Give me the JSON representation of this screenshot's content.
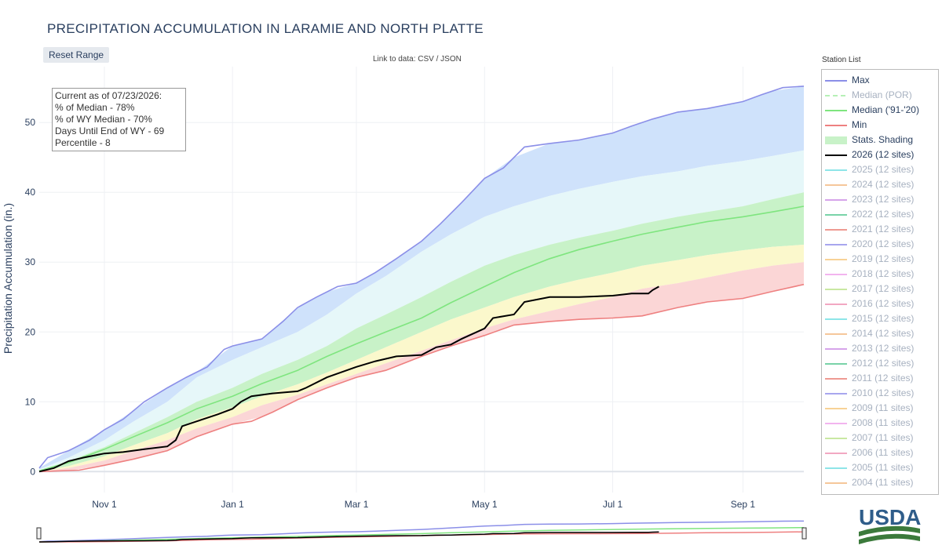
{
  "page": {
    "title": "PRECIPITATION ACCUMULATION IN LARAMIE AND NORTH PLATTE",
    "reset_label": "Reset Range",
    "data_link_prefix": "Link to data:",
    "data_link_csv": "CSV",
    "data_link_sep": "/",
    "data_link_json": "JSON",
    "station_list_title": "Station List",
    "logo_text": "USDA"
  },
  "stats_box": {
    "line1": "Current as of 07/23/2026:",
    "line2": "% of Median - 78%",
    "line3": "% of WY Median - 70%",
    "line4": "Days Until End of WY - 69",
    "line5": "Percentile - 8"
  },
  "legend": [
    {
      "label": "Max",
      "color": "#8b8fe8",
      "kind": "line",
      "dim": false
    },
    {
      "label": "Median (POR)",
      "color": "#b6f0b6",
      "kind": "dash",
      "dim": true
    },
    {
      "label": "Median ('91-'20)",
      "color": "#7fe57f",
      "kind": "line",
      "dim": false
    },
    {
      "label": "Min",
      "color": "#ee8080",
      "kind": "line",
      "dim": false
    },
    {
      "label": "Stats. Shading",
      "color": "#c8f2c8",
      "kind": "box",
      "dim": false
    },
    {
      "label": "2026 (12 sites)",
      "color": "#000000",
      "kind": "line",
      "dim": false
    },
    {
      "label": "2025 (12 sites)",
      "color": "#8ee5e8",
      "kind": "line",
      "dim": true
    },
    {
      "label": "2024 (12 sites)",
      "color": "#f5c79a",
      "kind": "line",
      "dim": true
    },
    {
      "label": "2023 (12 sites)",
      "color": "#d6a4ea",
      "kind": "line",
      "dim": true
    },
    {
      "label": "2022 (12 sites)",
      "color": "#79d3a8",
      "kind": "line",
      "dim": true
    },
    {
      "label": "2021 (12 sites)",
      "color": "#ee9a92",
      "kind": "line",
      "dim": true
    },
    {
      "label": "2020 (12 sites)",
      "color": "#a8a6ee",
      "kind": "line",
      "dim": true
    },
    {
      "label": "2019 (12 sites)",
      "color": "#f8d296",
      "kind": "line",
      "dim": true
    },
    {
      "label": "2018 (12 sites)",
      "color": "#f2b4ef",
      "kind": "line",
      "dim": true
    },
    {
      "label": "2017 (12 sites)",
      "color": "#c9e8a2",
      "kind": "line",
      "dim": true
    },
    {
      "label": "2016 (12 sites)",
      "color": "#f2a8c2",
      "kind": "line",
      "dim": true
    },
    {
      "label": "2015 (12 sites)",
      "color": "#8ee5e8",
      "kind": "line",
      "dim": true
    },
    {
      "label": "2014 (12 sites)",
      "color": "#f5c79a",
      "kind": "line",
      "dim": true
    },
    {
      "label": "2013 (12 sites)",
      "color": "#d6a4ea",
      "kind": "line",
      "dim": true
    },
    {
      "label": "2012 (12 sites)",
      "color": "#79d3a8",
      "kind": "line",
      "dim": true
    },
    {
      "label": "2011 (12 sites)",
      "color": "#ee9a92",
      "kind": "line",
      "dim": true
    },
    {
      "label": "2010 (12 sites)",
      "color": "#a8a6ee",
      "kind": "line",
      "dim": true
    },
    {
      "label": "2009 (11 sites)",
      "color": "#f8d296",
      "kind": "line",
      "dim": true
    },
    {
      "label": "2008 (11 sites)",
      "color": "#f2b4ef",
      "kind": "line",
      "dim": true
    },
    {
      "label": "2007 (11 sites)",
      "color": "#c9e8a2",
      "kind": "line",
      "dim": true
    },
    {
      "label": "2006 (11 sites)",
      "color": "#f2a8c2",
      "kind": "line",
      "dim": true
    },
    {
      "label": "2005 (11 sites)",
      "color": "#8ee5e8",
      "kind": "line",
      "dim": true
    },
    {
      "label": "2004 (11 sites)",
      "color": "#f5c79a",
      "kind": "line",
      "dim": true
    }
  ],
  "chart_data": {
    "type": "line",
    "title": "PRECIPITATION ACCUMULATION IN LARAMIE AND NORTH PLATTE",
    "ylabel": "Precipitation Accumulation (in.)",
    "xlabel": "",
    "x_ticks": [
      "Nov 1",
      "Jan 1",
      "Mar 1",
      "May 1",
      "Jul 1",
      "Sep 1"
    ],
    "y_ticks": [
      0,
      10,
      20,
      30,
      40,
      50
    ],
    "ylim": [
      -3,
      58
    ],
    "x_domain": [
      "2025-10-01",
      "2026-09-30"
    ],
    "grid": true,
    "legend_position": "right",
    "bands": {
      "color_max_upper": "#cfe2fb",
      "color_upper": "#e6f7f9",
      "color_mid": "#c8f2c8",
      "color_lower": "#fbf8cc",
      "color_min_lower": "#fbd6d6",
      "x": [
        "2025-10-01",
        "2025-10-15",
        "2025-11-01",
        "2025-11-15",
        "2025-12-01",
        "2025-12-15",
        "2026-01-01",
        "2026-01-15",
        "2026-02-01",
        "2026-02-15",
        "2026-03-01",
        "2026-03-15",
        "2026-04-01",
        "2026-04-15",
        "2026-05-01",
        "2026-05-15",
        "2026-06-01",
        "2026-06-15",
        "2026-07-01",
        "2026-07-15",
        "2026-08-01",
        "2026-08-15",
        "2026-09-01",
        "2026-09-15",
        "2026-09-30"
      ],
      "p90": [
        0.3,
        2.0,
        4.5,
        7.2,
        10.0,
        13.5,
        16.0,
        17.8,
        20.0,
        22.5,
        25.5,
        28.0,
        31.5,
        34.0,
        36.5,
        38.0,
        39.5,
        40.5,
        41.5,
        42.3,
        43.0,
        43.8,
        44.5,
        45.2,
        46.0
      ],
      "p70": [
        0.2,
        1.5,
        3.5,
        5.5,
        7.8,
        10.0,
        12.0,
        14.0,
        16.0,
        18.0,
        20.5,
        22.5,
        25.0,
        27.2,
        29.5,
        31.0,
        32.5,
        33.5,
        34.5,
        35.5,
        36.5,
        37.2,
        38.0,
        39.0,
        40.0
      ],
      "p30": [
        0.0,
        0.8,
        2.2,
        3.8,
        5.5,
        7.5,
        9.2,
        10.8,
        12.5,
        14.2,
        16.0,
        17.8,
        20.0,
        21.8,
        23.5,
        25.0,
        26.5,
        27.5,
        28.5,
        29.5,
        30.3,
        31.0,
        31.7,
        32.2,
        32.5
      ],
      "p10": [
        0.0,
        0.5,
        1.6,
        3.0,
        4.5,
        6.2,
        7.8,
        9.5,
        11.0,
        12.5,
        14.0,
        15.5,
        17.3,
        18.8,
        20.5,
        21.8,
        23.0,
        24.0,
        25.0,
        26.2,
        27.0,
        27.8,
        28.8,
        29.5,
        30.0
      ]
    },
    "series": [
      {
        "name": "Max",
        "color": "#8b8fe8",
        "x": [
          "2025-10-01",
          "2025-10-05",
          "2025-10-15",
          "2025-10-25",
          "2025-11-01",
          "2025-11-10",
          "2025-11-20",
          "2025-12-01",
          "2025-12-10",
          "2025-12-20",
          "2025-12-28",
          "2026-01-01",
          "2026-01-15",
          "2026-01-25",
          "2026-02-01",
          "2026-02-10",
          "2026-02-20",
          "2026-03-01",
          "2026-03-10",
          "2026-03-20",
          "2026-04-01",
          "2026-04-10",
          "2026-04-20",
          "2026-05-01",
          "2026-05-10",
          "2026-05-20",
          "2026-06-01",
          "2026-06-15",
          "2026-07-01",
          "2026-07-10",
          "2026-07-20",
          "2026-08-01",
          "2026-08-15",
          "2026-09-01",
          "2026-09-10",
          "2026-09-20",
          "2026-09-30"
        ],
        "values": [
          0.5,
          2.0,
          3.0,
          4.5,
          6.0,
          7.5,
          10.0,
          12.0,
          13.5,
          15.0,
          17.5,
          18.0,
          19.0,
          21.5,
          23.5,
          25.0,
          26.5,
          27.0,
          28.5,
          30.5,
          33.0,
          35.5,
          38.5,
          42.0,
          43.5,
          46.5,
          47.0,
          47.5,
          48.5,
          49.5,
          50.5,
          51.5,
          52.0,
          53.0,
          54.0,
          55.0,
          55.2
        ]
      },
      {
        "name": "Median ('91-'20)",
        "color": "#7fe57f",
        "x": [
          "2025-10-01",
          "2025-10-15",
          "2025-11-01",
          "2025-11-15",
          "2025-12-01",
          "2025-12-15",
          "2026-01-01",
          "2026-01-15",
          "2026-02-01",
          "2026-02-15",
          "2026-03-01",
          "2026-03-15",
          "2026-04-01",
          "2026-04-15",
          "2026-05-01",
          "2026-05-15",
          "2026-06-01",
          "2026-06-15",
          "2026-07-01",
          "2026-07-15",
          "2026-08-01",
          "2026-08-15",
          "2026-09-01",
          "2026-09-15",
          "2026-09-30"
        ],
        "values": [
          0.1,
          1.3,
          3.2,
          5.0,
          7.0,
          9.0,
          10.8,
          12.6,
          14.5,
          16.5,
          18.3,
          20.0,
          22.0,
          24.2,
          26.5,
          28.5,
          30.5,
          31.8,
          33.0,
          34.0,
          35.0,
          35.8,
          36.5,
          37.2,
          38.0
        ]
      },
      {
        "name": "Min",
        "color": "#ee8080",
        "x": [
          "2025-10-01",
          "2025-10-20",
          "2025-11-01",
          "2025-11-15",
          "2025-12-01",
          "2025-12-15",
          "2026-01-01",
          "2026-01-10",
          "2026-01-20",
          "2026-02-01",
          "2026-02-15",
          "2026-03-01",
          "2026-03-15",
          "2026-04-01",
          "2026-04-15",
          "2026-05-01",
          "2026-05-15",
          "2026-06-01",
          "2026-06-15",
          "2026-07-01",
          "2026-07-15",
          "2026-08-01",
          "2026-08-15",
          "2026-09-01",
          "2026-09-15",
          "2026-09-30"
        ],
        "values": [
          0.0,
          0.2,
          0.9,
          1.8,
          3.0,
          5.0,
          6.8,
          7.2,
          8.5,
          10.3,
          12.0,
          13.5,
          14.5,
          16.5,
          18.0,
          19.5,
          21.0,
          21.5,
          21.8,
          22.0,
          22.3,
          23.5,
          24.3,
          24.8,
          25.8,
          26.8
        ]
      },
      {
        "name": "2026 (12 sites)",
        "color": "#000000",
        "x": [
          "2025-10-01",
          "2025-10-08",
          "2025-10-15",
          "2025-10-22",
          "2025-11-01",
          "2025-11-10",
          "2025-11-20",
          "2025-12-01",
          "2025-12-05",
          "2025-12-08",
          "2025-12-15",
          "2025-12-25",
          "2026-01-01",
          "2026-01-05",
          "2026-01-10",
          "2026-01-20",
          "2026-02-01",
          "2026-02-05",
          "2026-02-15",
          "2026-03-01",
          "2026-03-10",
          "2026-03-20",
          "2026-04-01",
          "2026-04-08",
          "2026-04-15",
          "2026-04-20",
          "2026-05-01",
          "2026-05-05",
          "2026-05-15",
          "2026-05-20",
          "2026-06-01",
          "2026-06-15",
          "2026-07-01",
          "2026-07-10",
          "2026-07-18",
          "2026-07-20",
          "2026-07-23"
        ],
        "values": [
          0.0,
          0.5,
          1.5,
          2.0,
          2.6,
          2.8,
          3.2,
          3.6,
          4.5,
          6.5,
          7.2,
          8.2,
          9.0,
          10.0,
          10.8,
          11.2,
          11.5,
          12.0,
          13.5,
          15.0,
          15.8,
          16.5,
          16.7,
          17.8,
          18.2,
          19.0,
          20.5,
          22.0,
          22.5,
          24.3,
          25.0,
          25.0,
          25.2,
          25.5,
          25.5,
          26.0,
          26.5
        ]
      }
    ]
  }
}
